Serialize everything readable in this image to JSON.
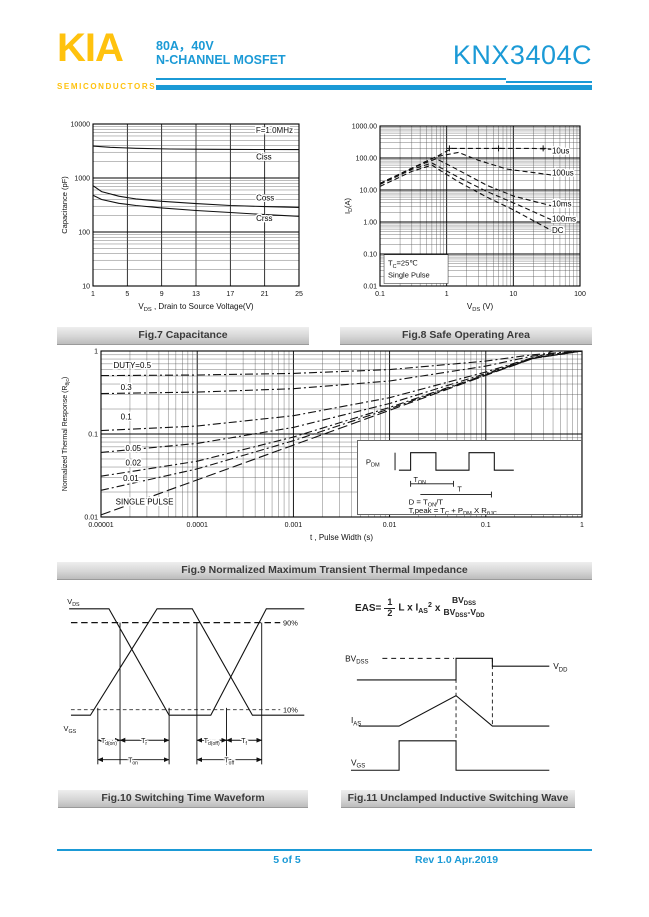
{
  "header": {
    "logo": "KIA",
    "logo_sub": "SEMICONDUCTORS",
    "rating": "80A，40V",
    "family": "N-CHANNEL MOSFET",
    "part_number": "KNX3404C"
  },
  "footer": {
    "page_label": "5 of 5",
    "rev_label": "Rev 1.0 Apr.2019"
  },
  "colors": {
    "accent": "#1b9ad6",
    "logo_yellow": "#ffc20e",
    "caption_text": "#3b3b3b",
    "ink": "#111111"
  },
  "figures": {
    "fig7": {
      "caption": "Fig.7 Capacitance"
    },
    "fig8": {
      "caption": "Fig.8 Safe Operating Area"
    },
    "fig9": {
      "caption": "Fig.9 Normalized Maximum Transient Thermal Impedance",
      "inset": {
        "pdm": [
          [
            "n",
            "P"
          ],
          [
            "s",
            "DM"
          ]
        ],
        "ton": [
          [
            "n",
            "T"
          ],
          [
            "s",
            "ON"
          ]
        ],
        "t": "T",
        "duty_formula": [
          [
            "n",
            "D = T"
          ],
          [
            "s",
            "ON"
          ],
          [
            "n",
            "/T"
          ]
        ],
        "tpeak_formula": [
          [
            "n",
            "T,peak = T"
          ],
          [
            "s",
            "C"
          ],
          [
            "n",
            " + P"
          ],
          [
            "s",
            "DM"
          ],
          [
            "n",
            " X R"
          ],
          [
            "s",
            "θJC"
          ]
        ]
      }
    },
    "fig10": {
      "caption": "Fig.10 Switching Time Waveform",
      "labels": {
        "vds": [
          [
            "n",
            "V"
          ],
          [
            "s",
            "DS"
          ]
        ],
        "vgs": [
          [
            "n",
            "V"
          ],
          [
            "s",
            "GS"
          ]
        ],
        "p90": "90%",
        "p10": "10%",
        "td_on": [
          [
            "n",
            "T"
          ],
          [
            "s",
            "d(on)"
          ]
        ],
        "tr": [
          [
            "n",
            "T"
          ],
          [
            "s",
            "r"
          ]
        ],
        "ton": [
          [
            "n",
            "T"
          ],
          [
            "s",
            "on"
          ]
        ],
        "td_off": [
          [
            "n",
            "T"
          ],
          [
            "s",
            "d(off)"
          ]
        ],
        "tf": [
          [
            "n",
            "T"
          ],
          [
            "s",
            "f"
          ]
        ],
        "toff": [
          [
            "n",
            "T"
          ],
          [
            "s",
            "off"
          ]
        ]
      }
    },
    "fig11": {
      "caption": "Fig.11 Unclamped Inductive Switching Wave",
      "formula": {
        "lhs": "EAS=",
        "num": "1",
        "den": "2",
        "term": "L x I",
        "term_sub": "AS",
        "term_sup": "2",
        "times": "x",
        "f2_num": [
          [
            "n",
            "BV"
          ],
          [
            "s",
            "DSS"
          ]
        ],
        "f2_den": [
          [
            "n",
            "BV"
          ],
          [
            "s",
            "DSS"
          ],
          [
            "n",
            "-V"
          ],
          [
            "s",
            "DD"
          ]
        ]
      },
      "labels": {
        "bvdss": [
          [
            "n",
            "BV"
          ],
          [
            "s",
            "DSS"
          ]
        ],
        "vdd": [
          [
            "n",
            "V"
          ],
          [
            "s",
            "DD"
          ]
        ],
        "ias": [
          [
            "n",
            "I"
          ],
          [
            "s",
            "AS"
          ]
        ],
        "vgs": [
          [
            "n",
            "V"
          ],
          [
            "s",
            "GS"
          ]
        ]
      }
    }
  },
  "chart_data": [
    {
      "id": "fig7",
      "type": "line",
      "title": "Fig.7 Capacitance",
      "xscale": "linear",
      "yscale": "log",
      "xlim": [
        1,
        25
      ],
      "ylim": [
        10,
        10000
      ],
      "xticks": [
        "1",
        "5",
        "9",
        "13",
        "17",
        "21",
        "25"
      ],
      "yticks": [
        "10",
        "100",
        "1000",
        "10000"
      ],
      "xlabel_rich": [
        [
          "n",
          "V"
        ],
        [
          "s",
          "DS"
        ],
        [
          "n",
          " , Drain to Source Voltage(V)"
        ]
      ],
      "ylabel": "Capacitance (pF)",
      "grid": true,
      "legend_position": "right-inside",
      "annotations": [
        {
          "x": 24.3,
          "y": 6800,
          "anchor": "end",
          "text": "F=1.0MHz"
        }
      ],
      "series": [
        {
          "name": "Ciss",
          "dash": "",
          "points": [
            [
              1,
              3900
            ],
            [
              3,
              3700
            ],
            [
              6,
              3550
            ],
            [
              10,
              3450
            ],
            [
              15,
              3400
            ],
            [
              20,
              3370
            ],
            [
              25,
              3350
            ]
          ]
        },
        {
          "name": "Coss",
          "dash": "",
          "points": [
            [
              1,
              720
            ],
            [
              2,
              560
            ],
            [
              4,
              460
            ],
            [
              6,
              410
            ],
            [
              9,
              370
            ],
            [
              13,
              335
            ],
            [
              17,
              310
            ],
            [
              21,
              295
            ],
            [
              25,
              285
            ]
          ]
        },
        {
          "name": "Crss",
          "dash": "",
          "points": [
            [
              1,
              480
            ],
            [
              2,
              400
            ],
            [
              4,
              340
            ],
            [
              6,
              310
            ],
            [
              9,
              280
            ],
            [
              13,
              250
            ],
            [
              17,
              230
            ],
            [
              21,
              210
            ],
            [
              25,
              195
            ]
          ]
        }
      ],
      "series_labels": [
        {
          "x": 20,
          "y": 2200,
          "text": "Ciss"
        },
        {
          "x": 20,
          "y": 380,
          "text": "Coss"
        },
        {
          "x": 20,
          "y": 160,
          "text": "Crss"
        }
      ]
    },
    {
      "id": "fig8",
      "type": "line",
      "title": "Fig.8 Safe Operating Area",
      "xscale": "log",
      "yscale": "log",
      "xlim": [
        0.1,
        100
      ],
      "ylim": [
        0.01,
        1000
      ],
      "xticks": [
        "0.1",
        "1",
        "10",
        "100"
      ],
      "yticks": [
        "0.01",
        "0.10",
        "1.00",
        "10.00",
        "100.00",
        "1000.00"
      ],
      "xlabel_rich": [
        [
          "n",
          "V"
        ],
        [
          "s",
          "DS"
        ],
        [
          "n",
          " (V)"
        ]
      ],
      "ylabel_rich": [
        [
          "n",
          "I"
        ],
        [
          "s",
          "D"
        ],
        [
          "n",
          "(A)"
        ]
      ],
      "grid": true,
      "ann_box": {
        "x0": 0.115,
        "x1": 1.05,
        "y0": 0.012,
        "y1": 0.095,
        "lines": [
          [
            [
              "n",
              "T"
            ],
            [
              "s",
              "C"
            ],
            [
              "n",
              "=25℃"
            ]
          ],
          [
            [
              "n",
              "Single Pulse"
            ]
          ]
        ]
      },
      "series": [
        {
          "name": "10us",
          "dash": "5 3",
          "points": [
            [
              0.1,
              16
            ],
            [
              0.3,
              48
            ],
            [
              0.7,
              110
            ],
            [
              1.2,
              200
            ],
            [
              5,
              200
            ],
            [
              20,
              200
            ],
            [
              45,
              185
            ]
          ],
          "markers": [
            [
              1.1,
              200
            ],
            [
              6,
              200
            ],
            [
              28,
              200
            ]
          ]
        },
        {
          "name": "100us",
          "dash": "5 3",
          "points": [
            [
              0.1,
              16
            ],
            [
              0.3,
              48
            ],
            [
              0.7,
              110
            ],
            [
              1.5,
              150
            ],
            [
              3,
              85
            ],
            [
              8,
              45
            ],
            [
              40,
              29
            ]
          ]
        },
        {
          "name": "10ms",
          "dash": "5 3",
          "points": [
            [
              0.1,
              16
            ],
            [
              0.3,
              48
            ],
            [
              0.7,
              95
            ],
            [
              1.5,
              42
            ],
            [
              4,
              14
            ],
            [
              10,
              6.5
            ],
            [
              40,
              3.1
            ]
          ]
        },
        {
          "name": "100ms",
          "dash": "5 3",
          "points": [
            [
              0.1,
              15
            ],
            [
              0.3,
              44
            ],
            [
              0.6,
              70
            ],
            [
              1.5,
              25
            ],
            [
              4,
              9
            ],
            [
              10,
              4
            ],
            [
              40,
              1.1
            ]
          ]
        },
        {
          "name": "DC",
          "dash": "5 3",
          "points": [
            [
              0.1,
              13
            ],
            [
              0.3,
              38
            ],
            [
              0.6,
              60
            ],
            [
              1.5,
              18
            ],
            [
              4,
              6
            ],
            [
              10,
              2.4
            ],
            [
              40,
              0.5
            ]
          ]
        }
      ],
      "series_labels": [
        {
          "x": 38,
          "y": 140,
          "text": "10us"
        },
        {
          "x": 38,
          "y": 28,
          "text": "100us"
        },
        {
          "x": 38,
          "y": 3.1,
          "text": "10ms"
        },
        {
          "x": 38,
          "y": 1.05,
          "text": "100ms"
        },
        {
          "x": 38,
          "y": 0.46,
          "text": "DC"
        }
      ]
    },
    {
      "id": "fig9",
      "type": "line",
      "title": "Fig.9 Normalized Maximum Transient Thermal Impedance",
      "xscale": "log",
      "yscale": "log",
      "xlim": [
        1e-05,
        1
      ],
      "ylim": [
        0.01,
        1
      ],
      "xticks": [
        "0.00001",
        "0.0001",
        "0.001",
        "0.01",
        "0.1",
        "1"
      ],
      "yticks": [
        "0.01",
        "0.1",
        "1"
      ],
      "xlabel": "t , Pulse Width (s)",
      "ylabel_rich": [
        [
          "n",
          "Normalized Thermal Response (R"
        ],
        [
          "s",
          "θjc"
        ],
        [
          "n",
          ")"
        ]
      ],
      "grid": true,
      "series": [
        {
          "name": "DUTY=0.5",
          "dash": "8 3 2 3",
          "points": [
            [
              1e-05,
              0.505
            ],
            [
              0.0001,
              0.514
            ],
            [
              0.001,
              0.537
            ],
            [
              0.01,
              0.597
            ],
            [
              0.1,
              0.755
            ],
            [
              0.3,
              0.9
            ],
            [
              1,
              1
            ]
          ]
        },
        {
          "name": "0.3",
          "dash": "8 3 2 3",
          "points": [
            [
              1e-05,
              0.307
            ],
            [
              0.0001,
              0.32
            ],
            [
              0.001,
              0.351
            ],
            [
              0.01,
              0.435
            ],
            [
              0.1,
              0.657
            ],
            [
              0.3,
              0.865
            ],
            [
              1,
              1
            ]
          ]
        },
        {
          "name": "0.1",
          "dash": "8 3 2 3",
          "points": [
            [
              1e-05,
              0.11
            ],
            [
              0.0001,
              0.125
            ],
            [
              0.001,
              0.166
            ],
            [
              0.01,
              0.274
            ],
            [
              0.1,
              0.559
            ],
            [
              0.3,
              0.826
            ],
            [
              1,
              1
            ]
          ]
        },
        {
          "name": "0.05",
          "dash": "8 3 2 3",
          "points": [
            [
              1e-05,
              0.06
            ],
            [
              0.0001,
              0.077
            ],
            [
              0.001,
              0.12
            ],
            [
              0.01,
              0.233
            ],
            [
              0.1,
              0.535
            ],
            [
              0.3,
              0.817
            ],
            [
              1,
              1
            ]
          ]
        },
        {
          "name": "0.02",
          "dash": "8 3 2 3",
          "points": [
            [
              1e-05,
              0.031
            ],
            [
              0.0001,
              0.047
            ],
            [
              0.001,
              0.092
            ],
            [
              0.01,
              0.209
            ],
            [
              0.1,
              0.52
            ],
            [
              0.3,
              0.81
            ],
            [
              1,
              1
            ]
          ]
        },
        {
          "name": "0.01",
          "dash": "8 3 2 3",
          "points": [
            [
              1e-05,
              0.021
            ],
            [
              0.0001,
              0.038
            ],
            [
              0.001,
              0.083
            ],
            [
              0.01,
              0.201
            ],
            [
              0.1,
              0.515
            ],
            [
              0.3,
              0.808
            ],
            [
              1,
              1
            ]
          ]
        },
        {
          "name": "SINGLE PULSE",
          "dash": "10 4",
          "points": [
            [
              1e-05,
              0.0106
            ],
            [
              2e-05,
              0.0142
            ],
            [
              5e-05,
              0.021
            ],
            [
              0.0001,
              0.028
            ],
            [
              0.001,
              0.0735
            ],
            [
              0.01,
              0.193
            ],
            [
              0.1,
              0.51
            ],
            [
              0.3,
              0.8
            ],
            [
              0.5,
              1
            ],
            [
              1,
              1
            ]
          ]
        }
      ],
      "series_labels": [
        {
          "x": 1.35e-05,
          "y": 0.62,
          "text": "DUTY=0.5"
        },
        {
          "x": 1.6e-05,
          "y": 0.34,
          "text": "0.3"
        },
        {
          "x": 1.6e-05,
          "y": 0.15,
          "text": "0.1"
        },
        {
          "x": 1.8e-05,
          "y": 0.062,
          "text": "0.05"
        },
        {
          "x": 1.8e-05,
          "y": 0.042,
          "text": "0.02"
        },
        {
          "x": 1.7e-05,
          "y": 0.027,
          "text": "0.01"
        },
        {
          "x": 1.42e-05,
          "y": 0.0142,
          "text": "SINGLE PULSE"
        }
      ]
    }
  ]
}
